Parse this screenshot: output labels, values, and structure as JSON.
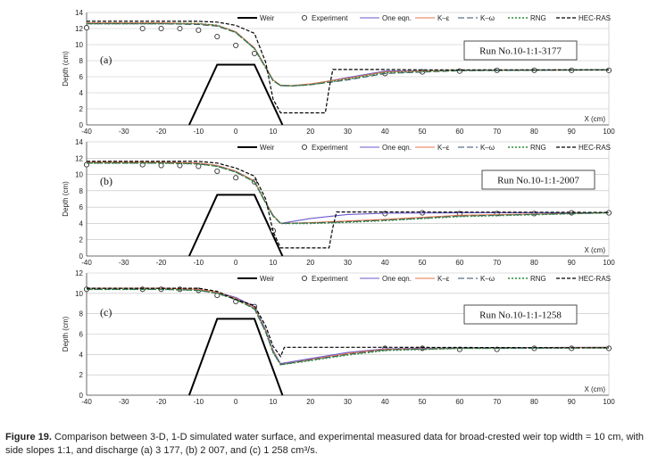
{
  "chart_data": [
    {
      "type": "line",
      "panel_label": "(a)",
      "run_label": "Run No.10-1:1-3177",
      "xlabel": "X (cm)",
      "ylabel": "Depth (cm)",
      "xlim": [
        -40,
        100
      ],
      "ylim": [
        0,
        14
      ],
      "xticks": [
        "-40",
        "-30",
        "-20",
        "-10",
        "0",
        "10",
        "20",
        "30",
        "40",
        "50",
        "60",
        "70",
        "80",
        "90",
        "100"
      ],
      "yticks": [
        "0",
        "2",
        "4",
        "6",
        "8",
        "10",
        "12",
        "14"
      ],
      "legend": [
        "Weir",
        "Experiment",
        "One eqn.",
        "K–ε",
        "K–ω",
        "RNG",
        "HEC-RAS"
      ],
      "series": [
        {
          "name": "Weir",
          "x": [
            -12.5,
            -5,
            5,
            12.5
          ],
          "y": [
            0,
            7.5,
            7.5,
            0
          ]
        },
        {
          "name": "Experiment",
          "x": [
            -40,
            -25,
            -20,
            -15,
            -10,
            -5,
            0,
            5,
            40,
            50,
            60,
            70,
            80,
            90,
            100
          ],
          "y": [
            12.1,
            12.0,
            12.0,
            12.0,
            11.8,
            11.0,
            9.9,
            8.9,
            6.4,
            6.6,
            6.7,
            6.8,
            6.8,
            6.8,
            6.8
          ]
        },
        {
          "name": "One eqn.",
          "x": [
            -40,
            -20,
            -10,
            -5,
            0,
            5,
            8,
            10,
            12,
            15,
            20,
            30,
            40,
            60,
            100
          ],
          "y": [
            12.6,
            12.6,
            12.6,
            12.4,
            11.6,
            9.6,
            7.2,
            5.6,
            4.9,
            4.85,
            5.05,
            5.9,
            6.7,
            6.8,
            6.85
          ]
        },
        {
          "name": "K–ε",
          "x": [
            -40,
            -20,
            -10,
            -5,
            0,
            5,
            8,
            10,
            12,
            15,
            20,
            30,
            40,
            60,
            100
          ],
          "y": [
            12.7,
            12.7,
            12.6,
            12.4,
            11.6,
            9.6,
            7.2,
            5.6,
            4.95,
            4.9,
            5.1,
            5.8,
            6.6,
            6.8,
            6.85
          ]
        },
        {
          "name": "K–ω",
          "x": [
            -40,
            -20,
            -10,
            -5,
            0,
            5,
            8,
            10,
            12,
            15,
            20,
            30,
            40,
            60,
            100
          ],
          "y": [
            12.6,
            12.6,
            12.5,
            12.3,
            11.5,
            9.5,
            7.1,
            5.5,
            4.9,
            4.85,
            5.0,
            5.6,
            6.4,
            6.75,
            6.85
          ]
        },
        {
          "name": "RNG",
          "x": [
            -40,
            -20,
            -10,
            -5,
            0,
            5,
            8,
            10,
            12,
            15,
            20,
            30,
            40,
            60,
            100
          ],
          "y": [
            12.6,
            12.6,
            12.6,
            12.4,
            11.5,
            9.5,
            7.1,
            5.5,
            4.9,
            4.85,
            5.0,
            5.7,
            6.5,
            6.8,
            6.85
          ]
        },
        {
          "name": "HEC-RAS",
          "x": [
            -40,
            -10,
            -5,
            0,
            5,
            8,
            10,
            12,
            24,
            25,
            26,
            40,
            50,
            100
          ],
          "y": [
            12.9,
            12.9,
            12.8,
            12.4,
            11.4,
            7.8,
            3.2,
            1.5,
            1.5,
            4.5,
            6.9,
            6.9,
            6.85,
            6.85
          ]
        }
      ]
    },
    {
      "type": "line",
      "panel_label": "(b)",
      "run_label": "Run No.10-1:1-2007",
      "xlabel": "X (cm)",
      "ylabel": "Depth (cm)",
      "xlim": [
        -40,
        100
      ],
      "ylim": [
        0,
        14
      ],
      "xticks": [
        "-40",
        "-30",
        "-20",
        "-10",
        "0",
        "10",
        "20",
        "30",
        "40",
        "50",
        "60",
        "70",
        "80",
        "90",
        "100"
      ],
      "yticks": [
        "0",
        "2",
        "4",
        "6",
        "8",
        "10",
        "12",
        "14"
      ],
      "legend": [
        "Weir",
        "Experiment",
        "One eqn.",
        "K–ε",
        "K–ω",
        "RNG",
        "HEC-RAS"
      ],
      "series": [
        {
          "name": "Weir",
          "x": [
            -12.5,
            -5,
            5,
            12.5
          ],
          "y": [
            0,
            7.5,
            7.5,
            0
          ]
        },
        {
          "name": "Experiment",
          "x": [
            -40,
            -25,
            -20,
            -15,
            -10,
            -5,
            0,
            5,
            10,
            40,
            50,
            60,
            70,
            80,
            90,
            100
          ],
          "y": [
            11.2,
            11.2,
            11.1,
            11.1,
            11.0,
            10.4,
            9.6,
            9.1,
            3.1,
            5.2,
            5.3,
            5.2,
            5.2,
            5.2,
            5.3,
            5.3
          ]
        },
        {
          "name": "One eqn.",
          "x": [
            -40,
            -20,
            -10,
            -5,
            0,
            5,
            8,
            10,
            12,
            20,
            30,
            40,
            60,
            100
          ],
          "y": [
            11.5,
            11.5,
            11.4,
            11.1,
            10.4,
            9.2,
            6.6,
            5.0,
            4.0,
            4.6,
            5.1,
            5.25,
            5.3,
            5.3
          ]
        },
        {
          "name": "K–ε",
          "x": [
            -40,
            -20,
            -10,
            -5,
            0,
            5,
            8,
            10,
            12,
            20,
            30,
            40,
            60,
            100
          ],
          "y": [
            11.5,
            11.5,
            11.4,
            11.1,
            10.4,
            9.2,
            6.6,
            5.0,
            4.0,
            4.1,
            4.3,
            4.5,
            5.0,
            5.3
          ]
        },
        {
          "name": "K–ω",
          "x": [
            -40,
            -20,
            -10,
            -5,
            0,
            5,
            8,
            10,
            12,
            20,
            30,
            40,
            60,
            100
          ],
          "y": [
            11.4,
            11.4,
            11.3,
            11.0,
            10.3,
            9.1,
            6.5,
            4.9,
            4.0,
            4.05,
            4.2,
            4.4,
            4.9,
            5.3
          ]
        },
        {
          "name": "RNG",
          "x": [
            -40,
            -20,
            -10,
            -5,
            0,
            5,
            8,
            10,
            12,
            20,
            30,
            40,
            60,
            100
          ],
          "y": [
            11.4,
            11.4,
            11.3,
            11.0,
            10.3,
            9.1,
            6.5,
            4.9,
            4.0,
            4.0,
            4.15,
            4.35,
            4.85,
            5.3
          ]
        },
        {
          "name": "HEC-RAS",
          "x": [
            -40,
            -10,
            -5,
            0,
            5,
            8,
            10,
            12,
            25,
            26,
            27,
            40,
            100
          ],
          "y": [
            11.6,
            11.6,
            11.4,
            10.8,
            9.8,
            7.0,
            3.0,
            1.0,
            1.0,
            3.5,
            5.4,
            5.4,
            5.35
          ]
        }
      ]
    },
    {
      "type": "line",
      "panel_label": "(c)",
      "run_label": "Run No.10-1:1-1258",
      "xlabel": "X (cm)",
      "ylabel": "Depth (cm)",
      "xlim": [
        -40,
        100
      ],
      "ylim": [
        0,
        12
      ],
      "xticks": [
        "-40",
        "-30",
        "-20",
        "-10",
        "0",
        "10",
        "20",
        "30",
        "40",
        "50",
        "60",
        "70",
        "80",
        "90",
        "100"
      ],
      "yticks": [
        "0",
        "2",
        "4",
        "6",
        "8",
        "10",
        "12"
      ],
      "legend": [
        "Weir",
        "Experiment",
        "One eqn.",
        "K–ε",
        "K–ω",
        "RNG",
        "HEC-RAS"
      ],
      "series": [
        {
          "name": "Weir",
          "x": [
            -12.5,
            -5,
            5,
            12.5
          ],
          "y": [
            0,
            7.5,
            7.5,
            0
          ]
        },
        {
          "name": "Experiment",
          "x": [
            -40,
            -25,
            -20,
            -15,
            -10,
            -5,
            0,
            5,
            40,
            50,
            60,
            70,
            80,
            90,
            100
          ],
          "y": [
            10.4,
            10.4,
            10.4,
            10.4,
            10.3,
            9.8,
            9.2,
            8.7,
            4.6,
            4.6,
            4.5,
            4.5,
            4.6,
            4.6,
            4.6
          ]
        },
        {
          "name": "One eqn.",
          "x": [
            -40,
            -20,
            -10,
            -5,
            0,
            5,
            8,
            10,
            12,
            20,
            30,
            40,
            60,
            100
          ],
          "y": [
            10.5,
            10.5,
            10.4,
            10.1,
            9.6,
            8.7,
            6.4,
            4.4,
            3.1,
            3.6,
            4.2,
            4.55,
            4.65,
            4.7
          ]
        },
        {
          "name": "K–ε",
          "x": [
            -40,
            -20,
            -10,
            -5,
            0,
            5,
            8,
            10,
            12,
            20,
            30,
            40,
            60,
            100
          ],
          "y": [
            10.5,
            10.5,
            10.4,
            10.1,
            9.5,
            8.6,
            6.3,
            4.3,
            3.0,
            3.5,
            4.1,
            4.5,
            4.6,
            4.7
          ]
        },
        {
          "name": "K–ω",
          "x": [
            -40,
            -20,
            -10,
            -5,
            0,
            5,
            8,
            10,
            12,
            20,
            30,
            40,
            60,
            100
          ],
          "y": [
            10.4,
            10.4,
            10.3,
            10.0,
            9.4,
            8.5,
            6.2,
            4.2,
            3.0,
            3.45,
            4.0,
            4.45,
            4.6,
            4.65
          ]
        },
        {
          "name": "RNG",
          "x": [
            -40,
            -20,
            -10,
            -5,
            0,
            5,
            8,
            10,
            12,
            20,
            30,
            40,
            60,
            100
          ],
          "y": [
            10.4,
            10.4,
            10.3,
            10.0,
            9.4,
            8.5,
            6.2,
            4.2,
            3.0,
            3.4,
            3.95,
            4.4,
            4.6,
            4.65
          ]
        },
        {
          "name": "HEC-RAS",
          "x": [
            -40,
            -10,
            -5,
            0,
            5,
            8,
            10,
            12,
            13,
            40,
            100
          ],
          "y": [
            10.5,
            10.5,
            10.2,
            9.4,
            8.8,
            6.8,
            4.8,
            3.8,
            4.7,
            4.7,
            4.65
          ]
        }
      ]
    }
  ],
  "style": {
    "series_colors": {
      "Weir": "#000000",
      "Experiment": "#333333",
      "One eqn.": "#6a5acd",
      "K–ε": "#e8734a",
      "K–ω": "#2f4f6f",
      "RNG": "#2e8b3a",
      "HEC-RAS": "#000000"
    },
    "grid_color": "#bfbfbf",
    "grid": "horizontal"
  },
  "caption": {
    "label": "Figure 19.",
    "text": " Comparison between 3-D, 1-D simulated water surface, and experimental measured data for broad-crested weir top width = 10 cm, with side slopes 1:1, and discharge (a) 3 177, (b) 2 007, and (c) 1 258 cm³/s."
  }
}
